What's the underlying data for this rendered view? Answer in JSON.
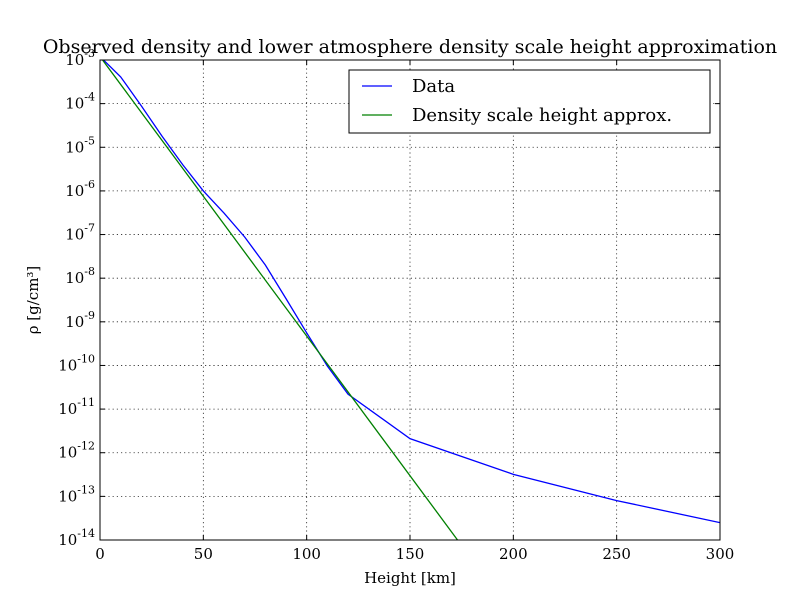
{
  "chart_data": {
    "type": "line",
    "title": "Observed density and lower atmosphere density scale height approximation",
    "xlabel": "Height [km]",
    "ylabel": "ρ [g/cm³]",
    "xlim": [
      0,
      300
    ],
    "ylim": [
      1e-14,
      0.001
    ],
    "yscale": "log",
    "grid": true,
    "legend_position": "top-right",
    "x_ticks": [
      "0",
      "50",
      "100",
      "150",
      "200",
      "250",
      "300"
    ],
    "y_ticks": [
      {
        "base": "10",
        "exp": "-3"
      },
      {
        "base": "10",
        "exp": "-4"
      },
      {
        "base": "10",
        "exp": "-5"
      },
      {
        "base": "10",
        "exp": "-6"
      },
      {
        "base": "10",
        "exp": "-7"
      },
      {
        "base": "10",
        "exp": "-8"
      },
      {
        "base": "10",
        "exp": "-9"
      },
      {
        "base": "10",
        "exp": "-10"
      },
      {
        "base": "10",
        "exp": "-11"
      },
      {
        "base": "10",
        "exp": "-12"
      },
      {
        "base": "10",
        "exp": "-13"
      },
      {
        "base": "10",
        "exp": "-14"
      }
    ],
    "series": [
      {
        "name": "Data",
        "color": "#0000ff",
        "x": [
          0,
          10,
          20,
          30,
          40,
          50,
          60,
          70,
          80,
          90,
          100,
          110,
          120,
          150,
          200,
          250,
          300
        ],
        "y": [
          0.0012,
          0.00041,
          8.9e-05,
          1.8e-05,
          4e-06,
          1e-06,
          3.1e-07,
          8.8e-08,
          2e-08,
          3.4e-09,
          5.6e-10,
          9.7e-11,
          2.2e-11,
          2.1e-12,
          3.2e-13,
          8e-14,
          2.5e-14
        ]
      },
      {
        "name": "Density scale height approx.",
        "color": "#008000",
        "x": [
          0,
          173
        ],
        "y": [
          0.0012,
          1e-14
        ]
      }
    ]
  }
}
